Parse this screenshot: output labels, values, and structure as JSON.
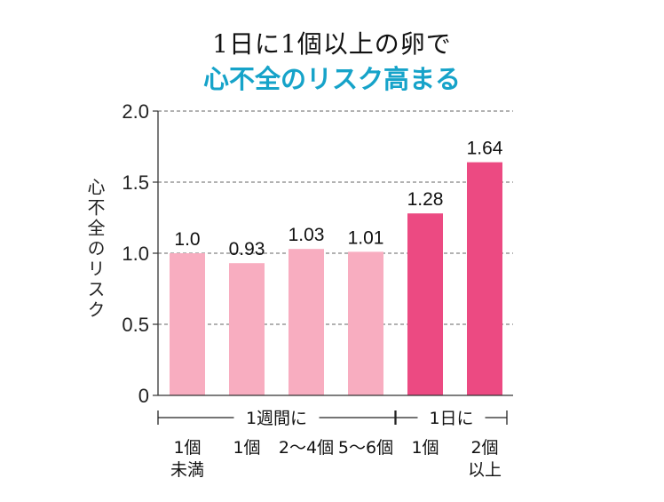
{
  "chart_data": {
    "type": "bar",
    "title": "1日に1個以上の卵で",
    "subtitle": "心不全のリスク高まる",
    "ylabel": "心不全のリスク",
    "ylim": [
      0,
      2.0
    ],
    "yticks": [
      "0",
      "0.5",
      "1.0",
      "1.5",
      "2.0"
    ],
    "grid": true,
    "categories": [
      [
        "1個",
        "未満"
      ],
      [
        "1個"
      ],
      [
        "2～4個"
      ],
      [
        "5～6個"
      ],
      [
        "1個"
      ],
      [
        "2個",
        "以上"
      ]
    ],
    "values": [
      1.0,
      0.93,
      1.03,
      1.01,
      1.28,
      1.64
    ],
    "value_labels": [
      "1.0",
      "0.93",
      "1.03",
      "1.01",
      "1.28",
      "1.64"
    ],
    "groups": [
      {
        "label": "1週間に",
        "categories": [
          1,
          2,
          3
        ]
      },
      {
        "label": "1日に",
        "categories": [
          4,
          5
        ]
      }
    ],
    "colors": [
      "#f8adc0",
      "#f8adc0",
      "#f8adc0",
      "#f8adc0",
      "#ec4a82",
      "#ec4a82"
    ]
  }
}
